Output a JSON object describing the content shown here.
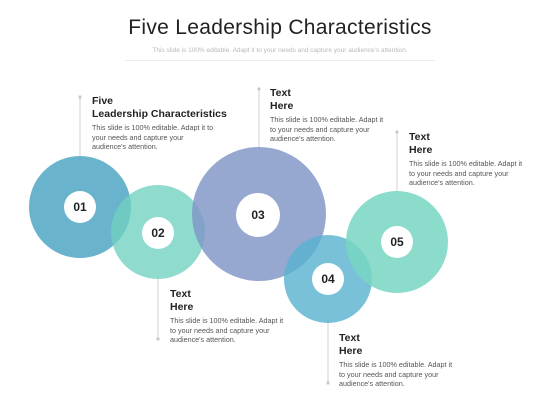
{
  "header": {
    "title": "Five Leadership Characteristics",
    "subtitle": "This slide is 100% editable. Adapt it to your needs and capture your audience's attention."
  },
  "colors": {
    "teal_blue": "#5aabc7",
    "mint": "#6fd1c0",
    "periwinkle": "#8095c6",
    "sky_blue": "#58b2cf",
    "aqua": "#78d6c3",
    "guide_line": "#c8c8c8"
  },
  "items": [
    {
      "number": "01",
      "heading_line1": "Five",
      "heading_line2": "Leadership Characteristics",
      "description": "This slide is 100% editable. Adapt it to your needs and capture your audience's attention."
    },
    {
      "number": "02",
      "heading_line1": "Text",
      "heading_line2": "Here",
      "description": "This slide is 100% editable. Adapt it to your needs and capture your audience's attention."
    },
    {
      "number": "03",
      "heading_line1": "Text",
      "heading_line2": "Here",
      "description": "This slide is 100% editable. Adapt it to your needs and capture your audience's attention."
    },
    {
      "number": "04",
      "heading_line1": "Text",
      "heading_line2": "Here",
      "description": "This slide is 100% editable. Adapt it to your needs and capture your audience's attention."
    },
    {
      "number": "05",
      "heading_line1": "Text",
      "heading_line2": "Here",
      "description": "This slide is 100% editable. Adapt it to your needs and capture your audience's attention."
    }
  ]
}
